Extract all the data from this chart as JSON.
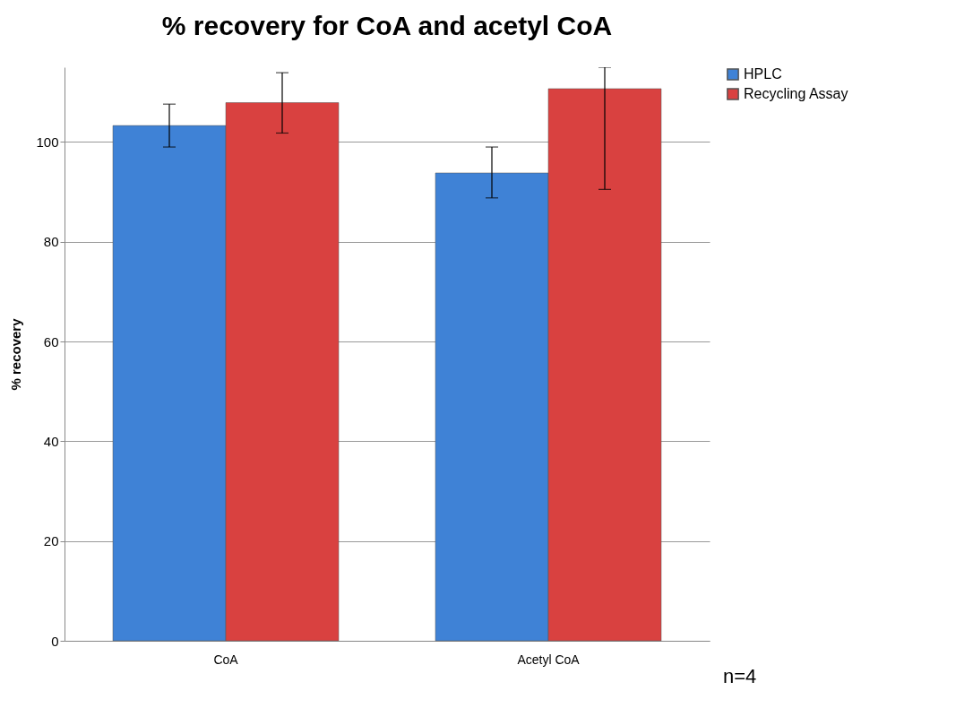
{
  "chart_data": {
    "type": "bar",
    "title": "% recovery for CoA and acetyl CoA",
    "ylabel": "% recovery",
    "categories": [
      "CoA",
      "Acetyl CoA"
    ],
    "series": [
      {
        "name": "HPLC",
        "color": "#3f82d6",
        "values": [
          103.3,
          93.8
        ],
        "errors": [
          [
            99.0,
            107.6
          ],
          [
            88.8,
            99.0
          ]
        ]
      },
      {
        "name": "Recycling Assay",
        "color": "#d94140",
        "values": [
          107.9,
          110.7
        ],
        "errors": [
          [
            101.8,
            113.9
          ],
          [
            90.5,
            115
          ]
        ]
      }
    ],
    "ylim": [
      0,
      115
    ],
    "yticks": [
      0,
      20,
      40,
      60,
      80,
      100
    ],
    "grid": "y",
    "legend": "right",
    "annotations": [
      "n=4"
    ]
  }
}
